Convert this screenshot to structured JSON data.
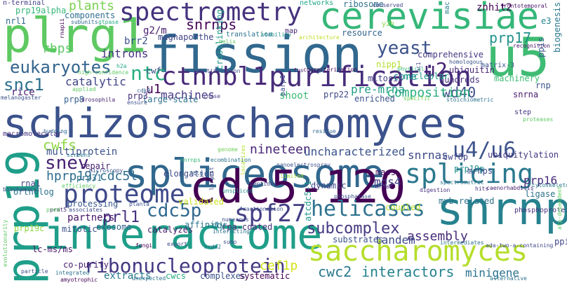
{
  "words": [
    {
      "text": "schizosaccharomyces",
      "color": "#3b528b"
    },
    {
      "text": "interactome",
      "color": "#1f9e89"
    },
    {
      "text": "spliceosome",
      "color": "#31688e"
    },
    {
      "text": "cdc5-120",
      "color": "#440154"
    },
    {
      "text": "fission",
      "color": "#31688e"
    },
    {
      "text": "cerevisiae",
      "color": "#35b779"
    },
    {
      "text": "prp19",
      "color": "#1f9e89"
    },
    {
      "text": "plrg1",
      "color": "#5ec962"
    },
    {
      "text": "snrnp",
      "color": "#26828e"
    },
    {
      "text": "u5",
      "color": "#3fbc73"
    },
    {
      "text": "saccharomyces",
      "color": "#b5de2b"
    },
    {
      "text": "spectrometry",
      "color": "#46327e"
    },
    {
      "text": "purification",
      "color": "#472d7b"
    },
    {
      "text": "ctnnbl1",
      "color": "#482878"
    },
    {
      "text": "proteome",
      "color": "#3e4a89"
    },
    {
      "text": "splicing",
      "color": "#2a788e"
    },
    {
      "text": "u4/u6",
      "color": "#3b528b"
    },
    {
      "text": "ribonucleoprotein",
      "color": "#443983"
    },
    {
      "text": "helicases",
      "color": "#2c728e"
    },
    {
      "text": "spf27",
      "color": "#433e85"
    },
    {
      "text": "snev",
      "color": "#482374"
    },
    {
      "text": "eukaryotes",
      "color": "#33638d"
    },
    {
      "text": "snc1",
      "color": "#2d708e"
    },
    {
      "text": "ntc",
      "color": "#29af7f"
    },
    {
      "text": "u2",
      "color": "#482475"
    },
    {
      "text": "yeast",
      "color": "#3b528b"
    },
    {
      "text": "hprp19/cdc5l",
      "color": "#2e6e8e"
    },
    {
      "text": "cdc5p",
      "color": "#31688e"
    },
    {
      "text": "prl1",
      "color": "#46307e"
    },
    {
      "text": "subcomplex",
      "color": "#443a83"
    },
    {
      "text": "cwc2",
      "color": "#2a788e"
    },
    {
      "text": "interactors",
      "color": "#26828e"
    },
    {
      "text": "minigene",
      "color": "#2c728e"
    },
    {
      "text": "cef1p",
      "color": "#d2e21b"
    },
    {
      "text": "assembly",
      "color": "#472c7a"
    },
    {
      "text": "snrnps",
      "color": "#440154"
    },
    {
      "text": "nineteen",
      "color": "#482576"
    },
    {
      "text": "mos4",
      "color": "#424086"
    },
    {
      "text": "snrnas",
      "color": "#3e4989"
    },
    {
      "text": "cwfs",
      "color": "#8fd744"
    },
    {
      "text": "prp17",
      "color": "#21918c"
    },
    {
      "text": "wd40",
      "color": "#3d4e8a"
    },
    {
      "text": "composition",
      "color": "#2ab07f"
    },
    {
      "text": "pre-mrna",
      "color": "#1f9e89"
    },
    {
      "text": "catalytic",
      "color": "#404588"
    },
    {
      "text": "introns",
      "color": "#46307e"
    },
    {
      "text": "plants",
      "color": "#7ad151"
    },
    {
      "text": "machines",
      "color": "#453781"
    },
    {
      "text": "prp16",
      "color": "#472d7b"
    },
    {
      "text": "tandem",
      "color": "#3e4a89"
    },
    {
      "text": "uncharacterized",
      "color": "#3a538b"
    },
    {
      "text": "multiprotein",
      "color": "#3b528b"
    },
    {
      "text": "extracts",
      "color": "#2a788e"
    },
    {
      "text": "mitotic",
      "color": "#3c4f8a"
    },
    {
      "text": "partners",
      "color": "#471365"
    },
    {
      "text": "exosome",
      "color": "#33638d"
    },
    {
      "text": "affinity",
      "color": "#2c738e"
    },
    {
      "text": "catalyzes",
      "color": "#481b6d"
    },
    {
      "text": "processing",
      "color": "#38588c"
    },
    {
      "text": "validated",
      "color": "#c8e020"
    },
    {
      "text": "dynamic",
      "color": "#3f4788"
    },
    {
      "text": "coupled",
      "color": "#b8de29"
    },
    {
      "text": "substrates",
      "color": "#3b528b"
    },
    {
      "text": "ubiquitylation",
      "color": "#453882"
    },
    {
      "text": "elongation",
      "color": "#3e4a89"
    },
    {
      "text": "ortholog",
      "color": "#2c728e"
    },
    {
      "text": "rnai",
      "color": "#414487"
    },
    {
      "text": "repair",
      "color": "#481f70"
    },
    {
      "text": "mass",
      "color": "#471063"
    },
    {
      "text": "hundreds",
      "color": "#46327e"
    },
    {
      "text": "machinery",
      "color": "#3dbc74"
    },
    {
      "text": "comprehensive",
      "color": "#453882"
    },
    {
      "text": "resource",
      "color": "#33638d"
    },
    {
      "text": "ribosome",
      "color": "#2e6f8e"
    },
    {
      "text": "core",
      "color": "#24868e"
    },
    {
      "text": "nucleolar",
      "color": "#1f9e89"
    },
    {
      "text": "ubiquitin",
      "color": "#482677"
    },
    {
      "text": "mitosis",
      "color": "#423f85"
    },
    {
      "text": "nipp1",
      "color": "#b4de2c"
    },
    {
      "text": "crosslinking",
      "color": "#1f9a8a"
    },
    {
      "text": "magnaporthe",
      "color": "#414487"
    },
    {
      "text": "brr2",
      "color": "#3b528b"
    },
    {
      "text": "g2/m",
      "color": "#481a6c"
    },
    {
      "text": "rbps",
      "color": "#5ac864"
    },
    {
      "text": "u1",
      "color": "#440154"
    },
    {
      "text": "cwf",
      "color": "#3c508b"
    },
    {
      "text": "large-scale",
      "color": "#2d708e"
    },
    {
      "text": "rice",
      "color": "#482173"
    },
    {
      "text": "prp8",
      "color": "#35608d"
    },
    {
      "text": "prp3",
      "color": "#46307e"
    },
    {
      "text": "shoot",
      "color": "#3bbb75"
    },
    {
      "text": "prp22",
      "color": "#3e4989"
    },
    {
      "text": "enriched",
      "color": "#3b528b"
    },
    {
      "text": "snrna",
      "color": "#481769"
    },
    {
      "text": "rnp",
      "color": "#3b528b"
    },
    {
      "text": "ppis",
      "color": "#375b8d"
    },
    {
      "text": "biogenesis",
      "color": "#2a788e"
    },
    {
      "text": "e3",
      "color": "#25848e"
    },
    {
      "text": "znhit2",
      "color": "#440154"
    },
    {
      "text": "matrix-3",
      "color": "#39568c"
    },
    {
      "text": "prp31",
      "color": "#2c728e"
    },
    {
      "text": "prp19p",
      "color": "#21918c"
    },
    {
      "text": "mrnps",
      "color": "#3e4a89"
    },
    {
      "text": "ligase",
      "color": "#2c728e"
    },
    {
      "text": "myb-related",
      "color": "#2c728e"
    },
    {
      "text": "prp19c",
      "color": "#8fd744"
    },
    {
      "text": "lc-ms/ms",
      "color": "#481668"
    },
    {
      "text": "co-purify",
      "color": "#482071"
    },
    {
      "text": "cwf8p",
      "color": "#404588"
    },
    {
      "text": "rpa-coated",
      "color": "#472d7b"
    },
    {
      "text": "ddr",
      "color": "#27808e"
    },
    {
      "text": "atcdc5-1",
      "color": "#1f948c"
    },
    {
      "text": "complexes",
      "color": "#3b528b"
    },
    {
      "text": "systematic",
      "color": "#440154"
    },
    {
      "text": "cwcs",
      "color": "#29af7f"
    },
    {
      "text": "ppi",
      "color": "#404688"
    },
    {
      "text": "phosphoproteins",
      "color": "#46327e"
    },
    {
      "text": "nrl1",
      "color": "#31688e"
    },
    {
      "text": "prp19alpha",
      "color": "#35b779"
    },
    {
      "text": "components",
      "color": "#2e6f8e"
    },
    {
      "text": "subunits",
      "color": "#306a8e"
    },
    {
      "text": "gtpase",
      "color": "#25ab82"
    },
    {
      "text": "n-terminal",
      "color": "#433e85"
    },
    {
      "text": "translation",
      "color": "#2c738e"
    },
    {
      "text": "stability",
      "color": "#21918c"
    },
    {
      "text": "map",
      "color": "#482475"
    },
    {
      "text": "architecture",
      "color": "#c2df23"
    },
    {
      "text": "networks",
      "color": "#22a785"
    },
    {
      "text": "conserved",
      "color": "#404588"
    },
    {
      "text": "y2h",
      "color": "#8bd646"
    },
    {
      "text": "mac",
      "color": "#26828e"
    },
    {
      "text": "frontotemporal",
      "color": "#471365"
    },
    {
      "text": "recognition",
      "color": "#481769"
    },
    {
      "text": "homologous",
      "color": "#3a538b"
    },
    {
      "text": "physical",
      "color": "#35b779"
    },
    {
      "text": "nc1",
      "color": "#3e4989"
    },
    {
      "text": "h2a",
      "color": "#22a785"
    },
    {
      "text": "high-confidence",
      "color": "#5ec962"
    },
    {
      "text": "applied",
      "color": "#5ec962"
    },
    {
      "text": "cdk9",
      "color": "#355f8d"
    },
    {
      "text": "drosophila",
      "color": "#482071"
    },
    {
      "text": "melanogaster",
      "color": "#3b528b"
    },
    {
      "text": "budding",
      "color": "#30698e"
    },
    {
      "text": "ensure",
      "color": "#3b528b"
    },
    {
      "text": "identification",
      "color": "#3e4989"
    },
    {
      "text": "fus",
      "color": "#481b6d"
    },
    {
      "text": "characterization",
      "color": "#440154"
    },
    {
      "text": "parp1",
      "color": "#3c508b"
    },
    {
      "text": "rnase",
      "color": "#433e85"
    },
    {
      "text": "residue",
      "color": "#30698e"
    },
    {
      "text": "specific",
      "color": "#6ece58"
    },
    {
      "text": "stoichiometric",
      "color": "#2c738e"
    },
    {
      "text": "step",
      "color": "#453581"
    },
    {
      "text": "proteases",
      "color": "#5ec962"
    },
    {
      "text": "cytoskeleton",
      "color": "#2a788e"
    },
    {
      "text": "macromolecular",
      "color": "#46327e"
    },
    {
      "text": "screens",
      "color": "#2a788e"
    },
    {
      "text": "microscopy",
      "color": "#3b528b"
    },
    {
      "text": "biochemical",
      "color": "#3e4a89"
    },
    {
      "text": "efficiency",
      "color": "#5ec962"
    },
    {
      "text": "hnrnps",
      "color": "#35b779"
    },
    {
      "text": "genome",
      "color": "#6ece58"
    },
    {
      "text": "recombination",
      "color": "#2c728e"
    },
    {
      "text": "nanoelectrospray",
      "color": "#3b528b"
    },
    {
      "text": "localizes",
      "color": "#b5de2b"
    },
    {
      "text": "limited",
      "color": "#9fda3a"
    },
    {
      "text": "ftld",
      "color": "#35608d"
    },
    {
      "text": "peptides",
      "color": "#404588"
    },
    {
      "text": "spectrometric",
      "color": "#2c728e"
    },
    {
      "text": "hits",
      "color": "#46307e"
    },
    {
      "text": "caenorhabditis",
      "color": "#482173"
    },
    {
      "text": "mrnas",
      "color": "#46327e"
    },
    {
      "text": "digestion",
      "color": "#46327e"
    },
    {
      "text": "largest",
      "color": "#3e4a89"
    },
    {
      "text": "unspliced",
      "color": "#21918c"
    },
    {
      "text": "planta",
      "color": "#3b528b"
    },
    {
      "text": "phosphatase",
      "color": "#3b528b"
    },
    {
      "text": "associates",
      "color": "#3e4a89"
    },
    {
      "text": "fractionation",
      "color": "#3b528b"
    },
    {
      "text": "prmt5",
      "color": "#482878"
    },
    {
      "text": "numerous",
      "color": "#3e4a89"
    },
    {
      "text": "interacting",
      "color": "#2c728e"
    },
    {
      "text": "atp-dependent",
      "color": "#5ec962"
    },
    {
      "text": "evolutionarily",
      "color": "#5ec962"
    },
    {
      "text": "fungi",
      "color": "#440154"
    },
    {
      "text": "export",
      "color": "#3e4a89"
    },
    {
      "text": "intermediates",
      "color": "#2c728e"
    },
    {
      "text": "ada-two-a-containing",
      "color": "#3e4a89"
    },
    {
      "text": "alternative",
      "color": "#2c728e"
    },
    {
      "text": "particle",
      "color": "#3e4a89"
    },
    {
      "text": "integrated",
      "color": "#2c728e"
    },
    {
      "text": "amyotrophic",
      "color": "#440154"
    },
    {
      "text": "unexpected",
      "color": "#2c728e"
    },
    {
      "text": "sumo",
      "color": "#3e4a89"
    },
    {
      "text": "rnapii",
      "color": "#440154"
    },
    {
      "text": "helix",
      "color": "#5ec962"
    },
    {
      "text": "pred",
      "color": "#5ec962"
    },
    {
      "text": "nrde2",
      "color": "#2c728e"
    }
  ]
}
